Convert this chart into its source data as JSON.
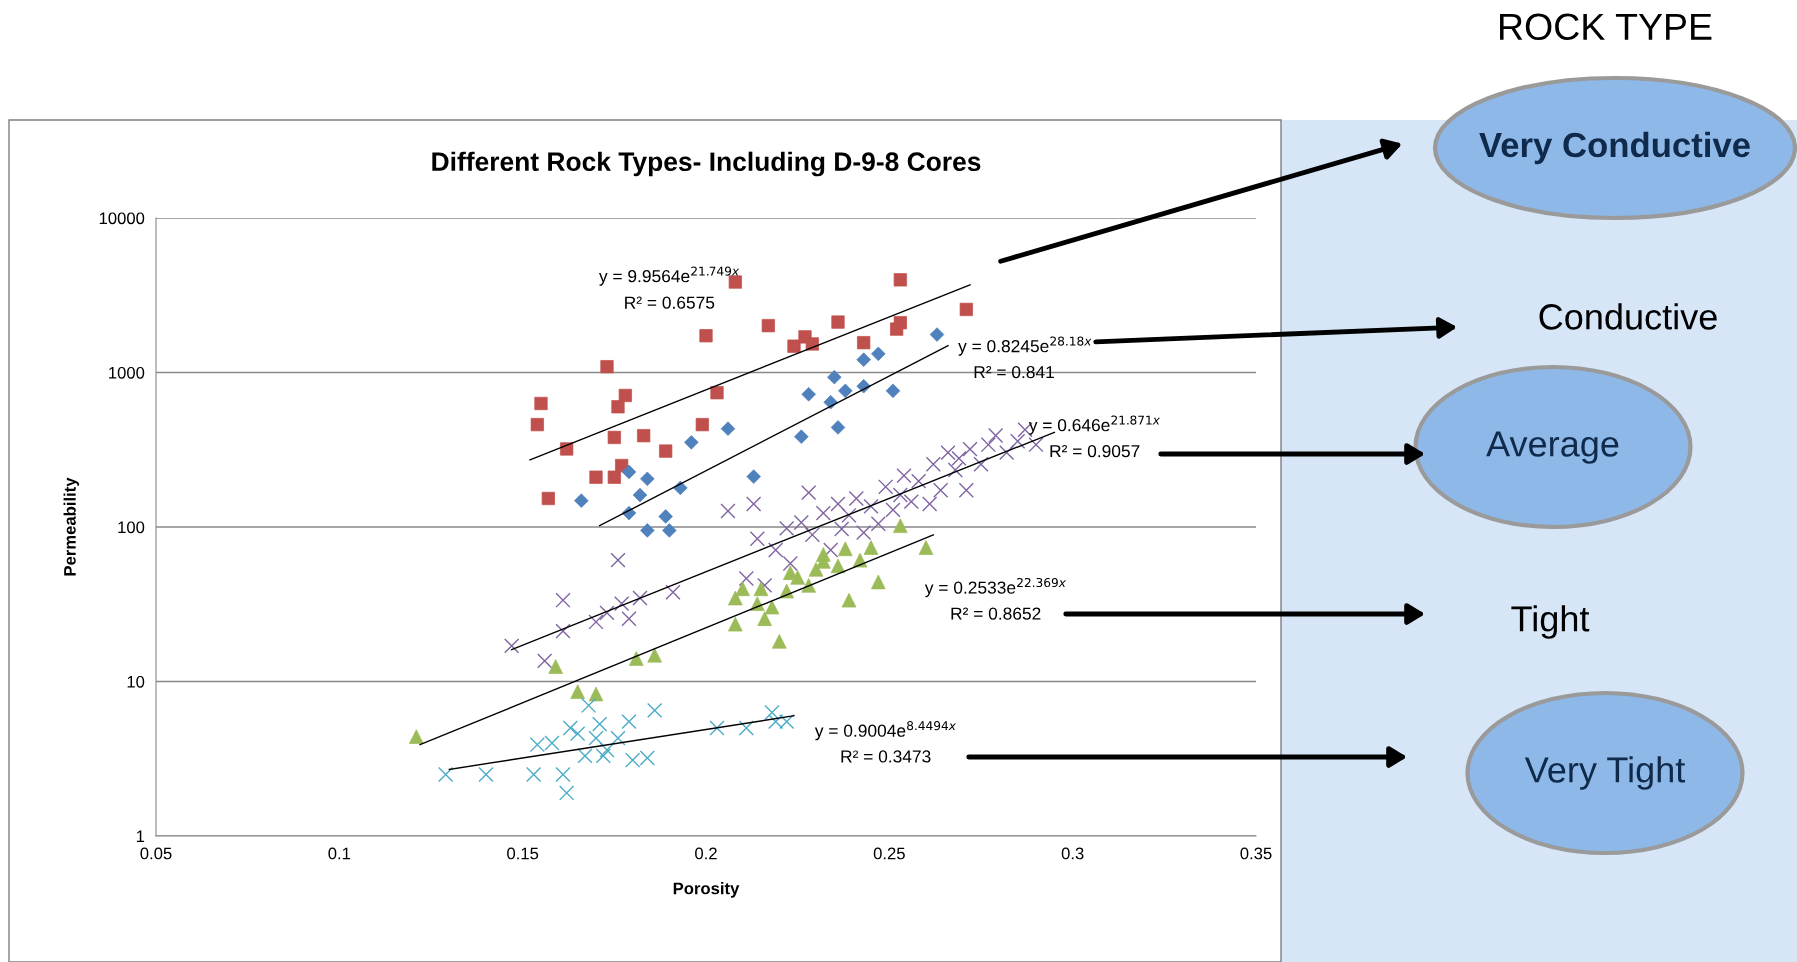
{
  "chart_data": {
    "type": "scatter",
    "title": "Different Rock Types- Including D-9-8 Cores",
    "xlabel": "Porosity",
    "ylabel": "Permeability",
    "legend_title": "ROCK TYPE",
    "log": "y",
    "grid": "y",
    "legend": "right",
    "xlim": [
      0.05,
      0.35
    ],
    "xticks": [
      0.05,
      0.1,
      0.15,
      0.2,
      0.25,
      0.3,
      0.35
    ],
    "ylim": [
      1,
      10000
    ],
    "yticks": [
      1,
      10,
      100,
      1000,
      10000
    ],
    "series": [
      {
        "color": "#c0504d",
        "marker": "square",
        "x": [
          0.157,
          0.155,
          0.154,
          0.162,
          0.173,
          0.175,
          0.176,
          0.178,
          0.17,
          0.175,
          0.177,
          0.183,
          0.189,
          0.2,
          0.199,
          0.203,
          0.208,
          0.217,
          0.224,
          0.227,
          0.229,
          0.236,
          0.243,
          0.252,
          0.253,
          0.253,
          0.271
        ],
        "values": [
          153,
          630,
          460,
          320,
          1090,
          380,
          600,
          710,
          210,
          210,
          250,
          390,
          310,
          1730,
          460,
          740,
          3850,
          2010,
          1480,
          1700,
          1530,
          2120,
          1560,
          1910,
          3980,
          2100,
          2560
        ]
      },
      {
        "color": "#4f81bd",
        "marker": "diamond",
        "x": [
          0.166,
          0.179,
          0.182,
          0.184,
          0.179,
          0.184,
          0.189,
          0.19,
          0.193,
          0.196,
          0.206,
          0.213,
          0.226,
          0.228,
          0.234,
          0.235,
          0.236,
          0.238,
          0.243,
          0.243,
          0.247,
          0.251,
          0.263
        ],
        "values": [
          148,
          227,
          161,
          205,
          123,
          95,
          117,
          95,
          179,
          353,
          433,
          212,
          384,
          723,
          642,
          933,
          441,
          761,
          815,
          1210,
          1320,
          761,
          1760
        ]
      },
      {
        "color": "#8064a2",
        "marker": "cross",
        "x": [
          0.147,
          0.156,
          0.161,
          0.161,
          0.176,
          0.17,
          0.173,
          0.177,
          0.179,
          0.182,
          0.191,
          0.206,
          0.211,
          0.213,
          0.214,
          0.216,
          0.219,
          0.222,
          0.223,
          0.226,
          0.228,
          0.229,
          0.232,
          0.234,
          0.236,
          0.237,
          0.239,
          0.241,
          0.243,
          0.245,
          0.247,
          0.249,
          0.251,
          0.253,
          0.254,
          0.256,
          0.258,
          0.261,
          0.262,
          0.264,
          0.266,
          0.268,
          0.269,
          0.272,
          0.271,
          0.275,
          0.277,
          0.279,
          0.282,
          0.285,
          0.287,
          0.29
        ],
        "values": [
          17,
          13.6,
          33.6,
          21.2,
          61,
          24.3,
          27.8,
          31.9,
          25.5,
          34.7,
          37.8,
          127,
          46.4,
          141,
          84,
          41.9,
          71,
          98,
          58,
          107,
          167,
          89,
          123,
          71,
          141,
          97,
          119,
          153,
          92,
          136,
          105,
          182,
          129,
          161,
          215,
          146,
          198,
          141,
          255,
          173,
          303,
          234,
          278,
          319,
          173,
          255,
          341,
          391,
          303,
          359,
          426,
          341
        ]
      },
      {
        "color": "#9bbb59",
        "marker": "triangle",
        "x": [
          0.121,
          0.159,
          0.165,
          0.17,
          0.181,
          0.186,
          0.208,
          0.208,
          0.21,
          0.214,
          0.215,
          0.216,
          0.218,
          0.22,
          0.222,
          0.223,
          0.225,
          0.228,
          0.23,
          0.232,
          0.232,
          0.236,
          0.238,
          0.239,
          0.242,
          0.245,
          0.247,
          0.253,
          0.26
        ],
        "values": [
          4.4,
          12.5,
          8.6,
          8.3,
          14.1,
          14.8,
          23.5,
          34.7,
          39.8,
          31.9,
          39.8,
          25.5,
          30.3,
          18.2,
          38.5,
          50.6,
          47.2,
          41.9,
          53.2,
          66.4,
          59.9,
          56,
          72.3,
          33.6,
          61,
          73.6,
          44.1,
          102,
          73.6
        ]
      },
      {
        "color": "#4bacc6",
        "marker": "cross",
        "x": [
          0.129,
          0.14,
          0.153,
          0.154,
          0.158,
          0.161,
          0.162,
          0.163,
          0.165,
          0.167,
          0.168,
          0.17,
          0.171,
          0.172,
          0.173,
          0.176,
          0.179,
          0.18,
          0.184,
          0.186,
          0.203,
          0.211,
          0.218,
          0.219,
          0.222
        ],
        "values": [
          2.5,
          2.5,
          2.5,
          3.9,
          4.0,
          2.5,
          1.9,
          5.0,
          4.6,
          3.3,
          7.0,
          4.3,
          5.3,
          3.3,
          3.6,
          4.3,
          5.5,
          3.1,
          3.2,
          6.5,
          5.0,
          5.0,
          6.3,
          5.5,
          5.5
        ]
      },
      {
        "type": "line",
        "name": "Very Conductive",
        "color": "#000000",
        "marker": "none",
        "x": [
          0.152,
          0.272
        ],
        "values": [
          272,
          3690
        ]
      },
      {
        "type": "line",
        "name": "Conductive",
        "color": "#000000",
        "marker": "none",
        "x": [
          0.171,
          0.266
        ],
        "values": [
          102,
          1490
        ]
      },
      {
        "type": "line",
        "name": "Average",
        "color": "#000000",
        "marker": "none",
        "x": [
          0.147,
          0.295
        ],
        "values": [
          16.1,
          410
        ]
      },
      {
        "type": "line",
        "name": "Tight",
        "color": "#000000",
        "marker": "none",
        "x": [
          0.122,
          0.262
        ],
        "values": [
          3.9,
          88.9
        ]
      },
      {
        "type": "line",
        "name": "Very Tight",
        "color": "#000000",
        "marker": "none",
        "x": [
          0.13,
          0.224
        ],
        "values": [
          2.7,
          6.0
        ]
      }
    ],
    "annotations": [
      "y = 9.9564e$^{21.749x}$",
      "R² = 0.6575",
      "y = 0.8245e$^{28.18x}$",
      "R² = 0.841",
      "y = 0.646e$^{21.871x}$",
      "R² = 0.9057",
      "y = 0.2533e$^{22.369x}$",
      "R² = 0.8652",
      "y = 0.9004e$^{8.4494x}$",
      "R² = 0.3473"
    ]
  }
}
